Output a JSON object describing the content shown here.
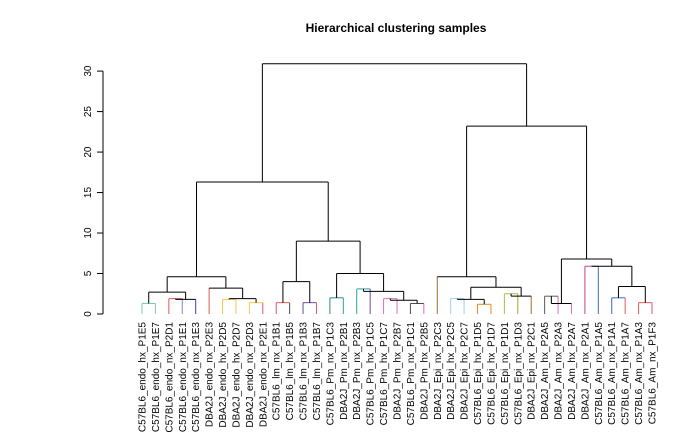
{
  "chart_data": {
    "type": "dendrogram",
    "title": "Hierarchical clustering samples",
    "xlabel": "",
    "ylabel": "",
    "ylim": [
      0,
      31
    ],
    "y_ticks": [
      0,
      5,
      10,
      15,
      20,
      25,
      30
    ],
    "grid": false,
    "leaves": [
      "C57BL6_endo_hx_P1E5",
      "C57BL6_endo_hx_P1E7",
      "C57BL6_endo_nx_P2D1",
      "C57BL6_endo_nx_P1E1",
      "C57BL6_endo_nx_P1E3",
      "DBA2J_endo_nx_P2E3",
      "DBA2J_endo_hx_P2D5",
      "DBA2J_endo_hx_P2D7",
      "DBA2J_endo_nx_P2D3",
      "DBA2J_endo_nx_P2E1",
      "C57BL6_lm_nx_P1B1",
      "C57BL6_lm_hx_P1B5",
      "C57BL6_lm_nx_P1B3",
      "C57BL6_lm_hx_P1B7",
      "C57BL6_Pm_nx_P1C3",
      "DBA2J_Pm_nx_P2B1",
      "DBA2J_Pm_nx_P2B3",
      "C57BL6_Pm_hx_P1C5",
      "C57BL6_Pm_hx_P1C7",
      "DBA2J_Pm_hx_P2B7",
      "C57BL6_Pm_nx_P1C1",
      "DBA2J_Pm_hx_P2B5",
      "DBA2J_Epi_nx_P2C3",
      "DBA2J_Epi_hx_P2C5",
      "DBA2J_Epi_hx_P2C7",
      "C57BL6_Epi_hx_P1D5",
      "C57BL6_Epi_hx_P1D7",
      "C57BL6_Epi_nx_P1D1",
      "C57BL6_Epi_nx_P1D3",
      "DBA2J_Epi_nx_P2C1",
      "DBA2J_Am_hx_P2A5",
      "DBA2J_Am_nx_P2A3",
      "DBA2J_Am_hx_P2A7",
      "DBA2J_Am_nx_P2A1",
      "C57BL6_Am_nx_P1A5",
      "C57BL6_Am_nx_P1A1",
      "C57BL6_Am_hx_P1A7",
      "C57BL6_Am_nx_P1A3",
      "C57BL6_Am_nx_P1F3"
    ],
    "leaf_colors": [
      "#7fc9b4",
      "#7fc9b4",
      "#e05a5a",
      "#8a7fd6",
      "#3a3ad6",
      "#e05a5a",
      "#f5c74a",
      "#f5c74a",
      "#f5c74a",
      "#e05a5a",
      "#e05a5a",
      "#4a4a4a",
      "#6b4a9a",
      "#e05a5a",
      "#2a8a8a",
      "#2aa0a0",
      "#2aa0a0",
      "#6b4a9a",
      "#e070b0",
      "#e070b0",
      "#4a4a4a",
      "#e070b0",
      "#a86a2a",
      "#9ad0f0",
      "#9ad0f0",
      "#e08a2a",
      "#e08a2a",
      "#a0c050",
      "#b0a020",
      "#a86a2a",
      "#5a5a5a",
      "#e070b0",
      "#e070b0",
      "#c040a0",
      "#3a6aba",
      "#3a6aba",
      "#e05a5a",
      "#e05a5a",
      "#e05a5a"
    ],
    "merges": [
      {
        "left": 0,
        "right": 1,
        "height": 1.3
      },
      {
        "left": 2,
        "right": 3,
        "height": 1.9
      },
      {
        "left": "n1",
        "right": 4,
        "height": 1.8
      },
      {
        "left": "n0",
        "right": "n2",
        "height": 2.7
      },
      {
        "left": 6,
        "right": 7,
        "height": 1.8
      },
      {
        "left": 8,
        "right": 9,
        "height": 1.4
      },
      {
        "left": "n4",
        "right": "n5",
        "height": 1.9
      },
      {
        "left": 5,
        "right": "n6",
        "height": 3.2
      },
      {
        "left": "n3",
        "right": "n7",
        "height": 4.6
      },
      {
        "left": 10,
        "right": 11,
        "height": 1.4
      },
      {
        "left": 12,
        "right": 13,
        "height": 1.4
      },
      {
        "left": "n9",
        "right": "n10",
        "height": 4.0
      },
      {
        "left": 14,
        "right": 15,
        "height": 2.0
      },
      {
        "left": 16,
        "right": 17,
        "height": 3.1
      },
      {
        "left": 18,
        "right": 19,
        "height": 1.9
      },
      {
        "left": 20,
        "right": 21,
        "height": 1.3
      },
      {
        "left": "n14",
        "right": "n15",
        "height": 1.7
      },
      {
        "left": "n13",
        "right": "n16",
        "height": 2.8
      },
      {
        "left": "n12",
        "right": "n17",
        "height": 5.0
      },
      {
        "left": "n11",
        "right": "n18",
        "height": 9.0
      },
      {
        "left": "n8",
        "right": "n19",
        "height": 16.3
      },
      {
        "left": 23,
        "right": 24,
        "height": 1.9
      },
      {
        "left": 25,
        "right": 26,
        "height": 1.2
      },
      {
        "left": "n21",
        "right": "n22",
        "height": 1.8
      },
      {
        "left": 27,
        "right": 28,
        "height": 2.5
      },
      {
        "left": "n24",
        "right": 29,
        "height": 2.2
      },
      {
        "left": "n23",
        "right": "n25",
        "height": 3.3
      },
      {
        "left": 22,
        "right": "n26",
        "height": 4.6
      },
      {
        "left": 30,
        "right": 31,
        "height": 2.2
      },
      {
        "left": "n28",
        "right": 32,
        "height": 1.3
      },
      {
        "left": 33,
        "right": 34,
        "height": 5.9
      },
      {
        "left": 35,
        "right": 36,
        "height": 2.0
      },
      {
        "left": 37,
        "right": 38,
        "height": 1.4
      },
      {
        "left": "n31",
        "right": "n32",
        "height": 3.4
      },
      {
        "left": "n30",
        "right": "n33",
        "height": 5.9
      },
      {
        "left": "n29",
        "right": "n34",
        "height": 6.8
      },
      {
        "left": "n27",
        "right": "n35",
        "height": 23.2
      },
      {
        "left": "n20",
        "right": "n36",
        "height": 30.9
      }
    ]
  }
}
